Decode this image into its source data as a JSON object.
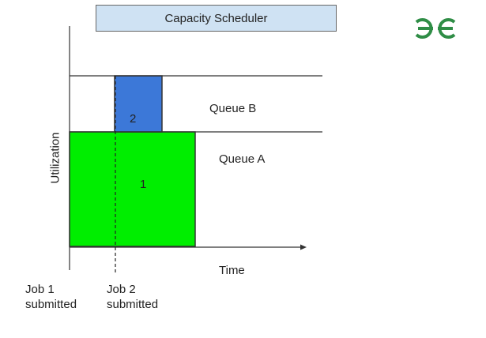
{
  "title": "Capacity Scheduler",
  "logo": {
    "icon": "gfg-logo-icon",
    "text": "ƏG",
    "color": "#2f8d46"
  },
  "axes": {
    "y_label": "Utilization",
    "x_label": "Time"
  },
  "queues": {
    "queue_b": "Queue B",
    "queue_a": "Queue A"
  },
  "jobs": [
    {
      "id": "1",
      "color": "#00ee00"
    },
    {
      "id": "2",
      "color": "#3c78d8"
    }
  ],
  "events": [
    {
      "line1": "Job 1",
      "line2": "submitted"
    },
    {
      "line1": "Job 2",
      "line2": "submitted"
    }
  ]
}
